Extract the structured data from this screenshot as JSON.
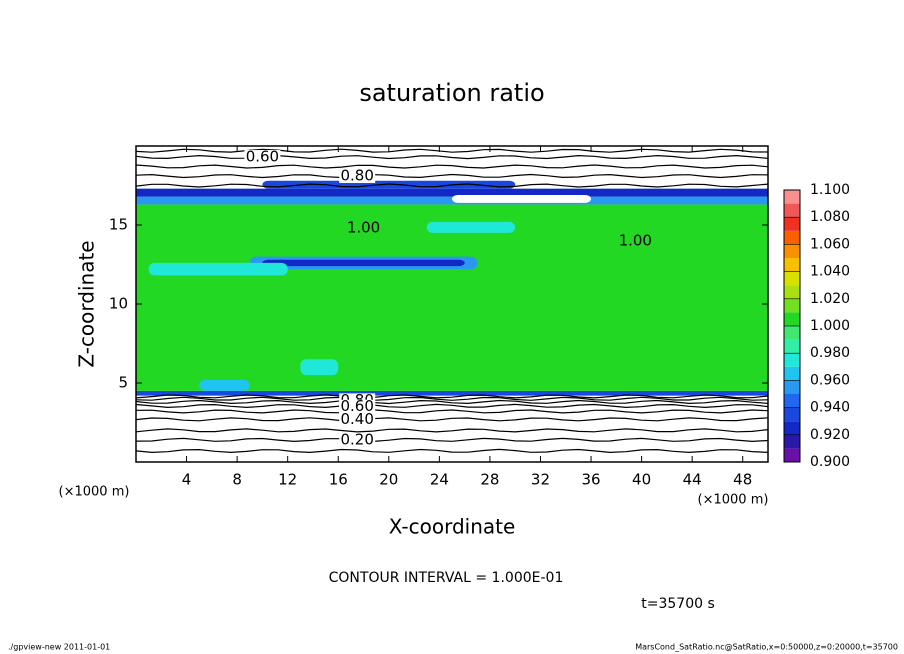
{
  "chart_data": {
    "type": "contour",
    "title": "saturation ratio",
    "x_label": "X-coordinate",
    "y_label": "Z-coordinate",
    "x_unit": "(×1000 m)",
    "y_unit": "(×1000 m)",
    "xlim": [
      0,
      50
    ],
    "ylim": [
      0,
      20
    ],
    "xticks": [
      4,
      8,
      12,
      16,
      20,
      24,
      28,
      32,
      36,
      40,
      44,
      48
    ],
    "yticks": [
      5,
      10,
      15
    ],
    "bands": [
      {
        "y": [
          4.2,
          4.5
        ],
        "value": 0.93
      },
      {
        "y": [
          4.5,
          16.3
        ],
        "value": 1.0
      },
      {
        "y": [
          16.3,
          16.8
        ],
        "value": 0.95
      },
      {
        "y": [
          16.8,
          17.3
        ],
        "value": 0.92
      }
    ],
    "patches": [
      {
        "x": [
          9,
          27
        ],
        "y": [
          12.2,
          13.0
        ],
        "value": 0.95
      },
      {
        "x": [
          10,
          26
        ],
        "y": [
          12.4,
          12.8
        ],
        "value": 0.92
      },
      {
        "x": [
          1,
          12
        ],
        "y": [
          11.8,
          12.6
        ],
        "value": 0.97
      },
      {
        "x": [
          25,
          36
        ],
        "y": [
          16.4,
          16.9
        ],
        "value": 0.88
      },
      {
        "x": [
          10,
          30
        ],
        "y": [
          17.3,
          17.8
        ],
        "value": 0.93
      },
      {
        "x": [
          5,
          9
        ],
        "y": [
          4.5,
          5.2
        ],
        "value": 0.96
      },
      {
        "x": [
          13,
          16
        ],
        "y": [
          5.5,
          6.5
        ],
        "value": 0.97
      },
      {
        "x": [
          23,
          30
        ],
        "y": [
          14.5,
          15.2
        ],
        "value": 0.97
      }
    ],
    "contours": [
      {
        "level": 0.1,
        "y": 0.7
      },
      {
        "level": 0.2,
        "y": 1.4
      },
      {
        "level": 0.3,
        "y": 2.0
      },
      {
        "level": 0.4,
        "y": 2.7
      },
      {
        "level": 0.5,
        "y": 3.2
      },
      {
        "level": 0.6,
        "y": 3.55
      },
      {
        "level": 0.7,
        "y": 3.8
      },
      {
        "level": 0.8,
        "y": 4.0
      },
      {
        "level": 0.9,
        "y": 4.15
      },
      {
        "level": 0.9,
        "y": 17.5
      },
      {
        "level": 0.8,
        "y": 18.1
      },
      {
        "level": 0.7,
        "y": 18.7
      },
      {
        "level": 0.6,
        "y": 19.3
      },
      {
        "level": 0.5,
        "y": 19.7
      }
    ],
    "contour_labels": [
      {
        "value": 0.6,
        "label": "0.60",
        "x": 10,
        "y": 19.3
      },
      {
        "value": 0.8,
        "label": "0.80",
        "x": 17.5,
        "y": 18.1
      },
      {
        "value": 1.0,
        "label": "1.00",
        "x": 18,
        "y": 14.8
      },
      {
        "value": 1.0,
        "label": "1.00",
        "x": 39.5,
        "y": 14.0
      },
      {
        "value": 0.8,
        "label": "0.80",
        "x": 17.5,
        "y": 3.9
      },
      {
        "value": 0.6,
        "label": "0.60",
        "x": 17.5,
        "y": 3.5
      },
      {
        "value": 0.4,
        "label": "0.40",
        "x": 17.5,
        "y": 2.7
      },
      {
        "value": 0.2,
        "label": "0.20",
        "x": 17.5,
        "y": 1.4
      }
    ],
    "colorbar": {
      "clim": [
        0.9,
        1.1
      ],
      "colors": [
        "#6a10a8",
        "#2a18a8",
        "#1428c8",
        "#1848e0",
        "#2068f0",
        "#2898f0",
        "#20c4f0",
        "#20e8d8",
        "#30f0a8",
        "#40e870",
        "#22d822",
        "#70e020",
        "#a8e010",
        "#d8e000",
        "#f8c000",
        "#f89000",
        "#f86000",
        "#f03020",
        "#f05858",
        "#f89090"
      ],
      "ticks": [
        {
          "value": 0.9,
          "label": "0.900"
        },
        {
          "value": 0.92,
          "label": "0.920"
        },
        {
          "value": 0.94,
          "label": "0.940"
        },
        {
          "value": 0.96,
          "label": "0.960"
        },
        {
          "value": 0.98,
          "label": "0.980"
        },
        {
          "value": 1.0,
          "label": "1.000"
        },
        {
          "value": 1.02,
          "label": "1.020"
        },
        {
          "value": 1.04,
          "label": "1.040"
        },
        {
          "value": 1.06,
          "label": "1.060"
        },
        {
          "value": 1.08,
          "label": "1.080"
        },
        {
          "value": 1.1,
          "label": "1.100"
        }
      ]
    },
    "contour_interval": "CONTOUR INTERVAL = 1.000E-01",
    "time_label": "t=35700 s",
    "footer_left": "./gpview-new  2011-01-01",
    "footer_right": "MarsCond_SatRatio.nc@SatRatio,x=0:50000,z=0:20000,t=35700"
  }
}
